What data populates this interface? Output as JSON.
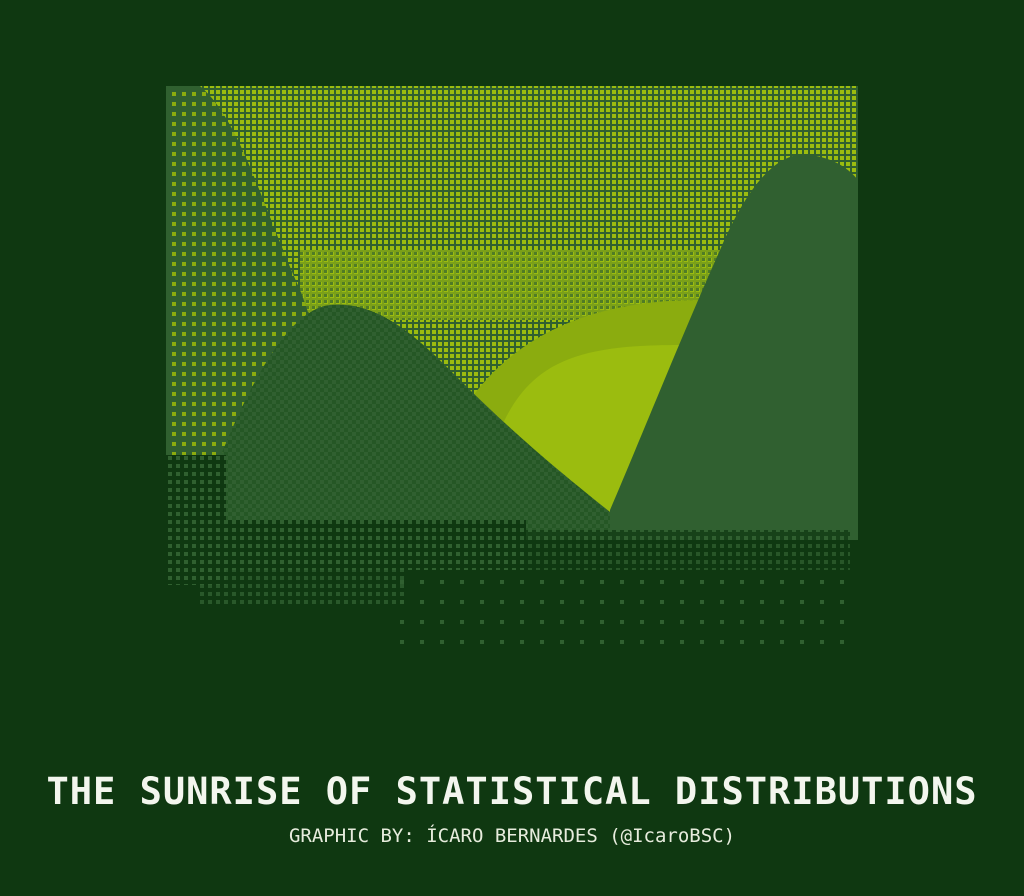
{
  "title": "THE SUNRISE OF STATISTICAL DISTRIBUTIONS",
  "credit": "GRAPHIC BY: ÍCARO BERNARDES (@IcaroBSC)",
  "palette": {
    "background": "#0f3811",
    "dark_green": "#306030",
    "bright_green": "#8bac0f",
    "lime": "#9bbc0f",
    "text": "#f3f6ee"
  }
}
